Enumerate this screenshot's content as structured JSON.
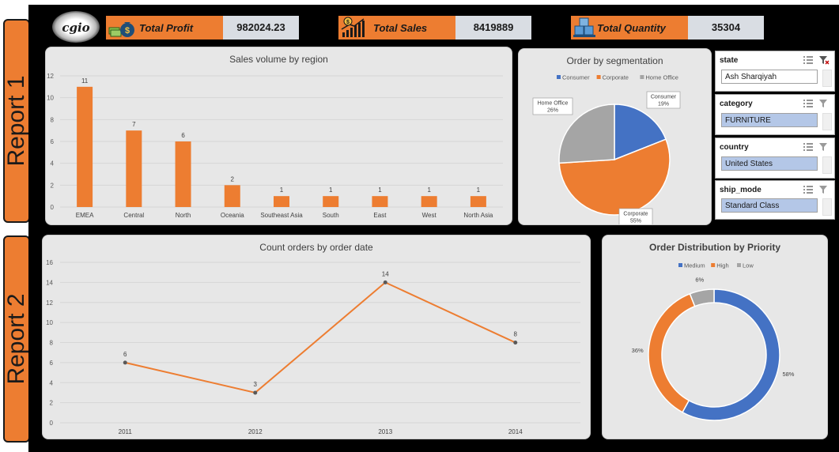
{
  "side_tabs": {
    "report1": "Report 1",
    "report2": "Report 2"
  },
  "logo_text": "cgio",
  "kpis": [
    {
      "label": "Total Profit",
      "value": "982024.23",
      "icon": "money-bag-icon"
    },
    {
      "label": "Total Sales",
      "value": "8419889",
      "icon": "growth-chart-icon"
    },
    {
      "label": "Total Quantity",
      "value": "35304",
      "icon": "boxes-icon"
    }
  ],
  "slicers": [
    {
      "header": "state",
      "selected": "Ash Sharqiyah",
      "active": false
    },
    {
      "header": "category",
      "selected": "FURNITURE",
      "active": true
    },
    {
      "header": "country",
      "selected": "United States",
      "active": true
    },
    {
      "header": "ship_mode",
      "selected": "Standard Class",
      "active": true
    }
  ],
  "colors": {
    "orange": "#ed7d31",
    "blue": "#4472c4",
    "gray": "#a5a5a5"
  },
  "chart_data": [
    {
      "type": "bar",
      "title": "Sales volume by region",
      "categories": [
        "EMEA",
        "Central",
        "North",
        "Oceania",
        "Southeast Asia",
        "South",
        "East",
        "West",
        "North Asia"
      ],
      "values": [
        11,
        7,
        6,
        2,
        1,
        1,
        1,
        1,
        1
      ],
      "ylim": [
        0,
        12
      ],
      "yticks": [
        "0",
        "2",
        "4",
        "6",
        "8",
        "10",
        "12"
      ],
      "grid": true
    },
    {
      "type": "pie",
      "title": "Order by segmentation",
      "legend_position": "top",
      "slices": [
        {
          "name": "Consumer",
          "value": 19,
          "label": "Consumer\n19%"
        },
        {
          "name": "Corporate",
          "value": 55,
          "label": "Corporate\n55%"
        },
        {
          "name": "Home Office",
          "value": 26,
          "label": "Home Office\n26%"
        }
      ]
    },
    {
      "type": "line",
      "title": "Count orders by order date",
      "x": [
        "2011",
        "2012",
        "2013",
        "2014"
      ],
      "values": [
        6,
        3,
        14,
        8
      ],
      "ylim": [
        0,
        16
      ],
      "yticks": [
        "0",
        "2",
        "4",
        "6",
        "8",
        "10",
        "12",
        "14",
        "16"
      ],
      "grid": true
    },
    {
      "type": "pie",
      "title": "Order Distribution by Priority",
      "variant": "doughnut",
      "legend_position": "top",
      "slices": [
        {
          "name": "Medium",
          "value": 58,
          "label": "58%"
        },
        {
          "name": "High",
          "value": 36,
          "label": "36%"
        },
        {
          "name": "Low",
          "value": 6,
          "label": "6%"
        }
      ]
    }
  ]
}
